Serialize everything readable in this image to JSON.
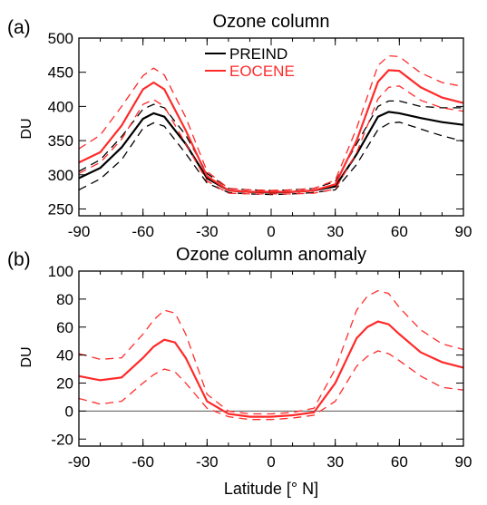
{
  "chart_data": [
    {
      "type": "line",
      "panel_label": "(a)",
      "title": "Ozone column",
      "xlabel": "",
      "ylabel": "DU",
      "xlim": [
        -90,
        90
      ],
      "ylim": [
        240,
        500
      ],
      "xticks": [
        "-90",
        "-60",
        "-30",
        "0",
        "30",
        "60",
        "90"
      ],
      "yticks": [
        "250",
        "300",
        "350",
        "400",
        "450",
        "500"
      ],
      "legend_position": "top-center",
      "x": [
        -90,
        -80,
        -70,
        -60,
        -55,
        -50,
        -40,
        -30,
        -20,
        -10,
        0,
        10,
        20,
        30,
        40,
        50,
        55,
        60,
        70,
        80,
        90
      ],
      "series": [
        {
          "name": "PREIND",
          "color": "#000000",
          "values": [
            295,
            310,
            340,
            382,
            390,
            385,
            345,
            295,
            277,
            275,
            274,
            275,
            277,
            283,
            330,
            385,
            392,
            390,
            383,
            377,
            373
          ],
          "upper": [
            305,
            322,
            356,
            396,
            403,
            398,
            358,
            302,
            280,
            278,
            277,
            278,
            280,
            290,
            345,
            400,
            408,
            408,
            400,
            398,
            398
          ],
          "lower": [
            278,
            294,
            322,
            368,
            376,
            371,
            331,
            288,
            274,
            272,
            271,
            272,
            274,
            278,
            315,
            366,
            375,
            377,
            367,
            357,
            349
          ]
        },
        {
          "name": "EOCENE",
          "color": "#ff2a2a",
          "values": [
            318,
            333,
            372,
            425,
            435,
            425,
            365,
            298,
            277,
            275,
            275,
            275,
            277,
            286,
            350,
            436,
            453,
            452,
            428,
            413,
            405
          ],
          "upper": [
            338,
            358,
            400,
            445,
            456,
            446,
            384,
            305,
            280,
            278,
            277,
            278,
            280,
            292,
            368,
            460,
            474,
            473,
            449,
            435,
            429
          ],
          "lower": [
            302,
            318,
            352,
            403,
            410,
            400,
            345,
            291,
            273,
            272,
            272,
            272,
            273,
            279,
            332,
            411,
            428,
            430,
            409,
            398,
            393
          ]
        }
      ]
    },
    {
      "type": "line",
      "panel_label": "(b)",
      "title": "Ozone column anomaly",
      "xlabel": "Latitude [° N]",
      "ylabel": "DU",
      "xlim": [
        -90,
        90
      ],
      "ylim": [
        -25,
        100
      ],
      "xticks": [
        "-90",
        "-60",
        "-30",
        "0",
        "30",
        "60",
        "90"
      ],
      "yticks": [
        "-20",
        "0",
        "20",
        "40",
        "60",
        "80",
        "100"
      ],
      "zero_line": true,
      "x": [
        -90,
        -80,
        -70,
        -60,
        -55,
        -50,
        -45,
        -40,
        -30,
        -20,
        -10,
        0,
        10,
        20,
        30,
        40,
        45,
        50,
        55,
        60,
        70,
        80,
        90
      ],
      "series": [
        {
          "color": "#ff2a2a",
          "values": [
            25,
            22,
            24,
            38,
            46,
            51,
            49,
            38,
            7,
            -2,
            -4,
            -4,
            -3,
            -1,
            20,
            52,
            60,
            64,
            62,
            55,
            42,
            35,
            31
          ],
          "upper": [
            41,
            37,
            38,
            55,
            65,
            72,
            70,
            55,
            12,
            0,
            -2,
            -2,
            -1,
            2,
            30,
            72,
            82,
            86,
            84,
            74,
            58,
            48,
            44
          ],
          "lower": [
            9,
            5,
            7,
            20,
            26,
            30,
            28,
            20,
            2,
            -4,
            -6,
            -6,
            -5,
            -3,
            7,
            32,
            39,
            43,
            41,
            36,
            25,
            17,
            15
          ]
        }
      ]
    }
  ]
}
